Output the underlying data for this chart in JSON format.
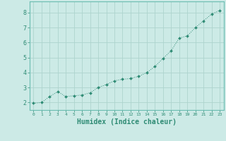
{
  "x": [
    0,
    1,
    2,
    3,
    4,
    5,
    6,
    7,
    8,
    9,
    10,
    11,
    12,
    13,
    14,
    15,
    16,
    17,
    18,
    19,
    20,
    21,
    22,
    23
  ],
  "y": [
    1.95,
    2.0,
    2.4,
    2.72,
    2.4,
    2.45,
    2.5,
    2.65,
    3.0,
    3.2,
    3.45,
    3.55,
    3.6,
    3.75,
    4.0,
    4.4,
    4.95,
    5.45,
    6.3,
    6.45,
    7.0,
    7.45,
    7.9,
    8.15
  ],
  "line_color": "#2e8b74",
  "marker_color": "#2e8b74",
  "bg_color": "#cceae6",
  "grid_color": "#aed4ce",
  "axis_color": "#2e8b74",
  "border_color": "#6abcb0",
  "xlabel": "Humidex (Indice chaleur)",
  "xlabel_fontsize": 7,
  "ylabel_ticks": [
    2,
    3,
    4,
    5,
    6,
    7,
    8
  ],
  "xlim": [
    -0.5,
    23.5
  ],
  "ylim": [
    1.5,
    8.75
  ]
}
